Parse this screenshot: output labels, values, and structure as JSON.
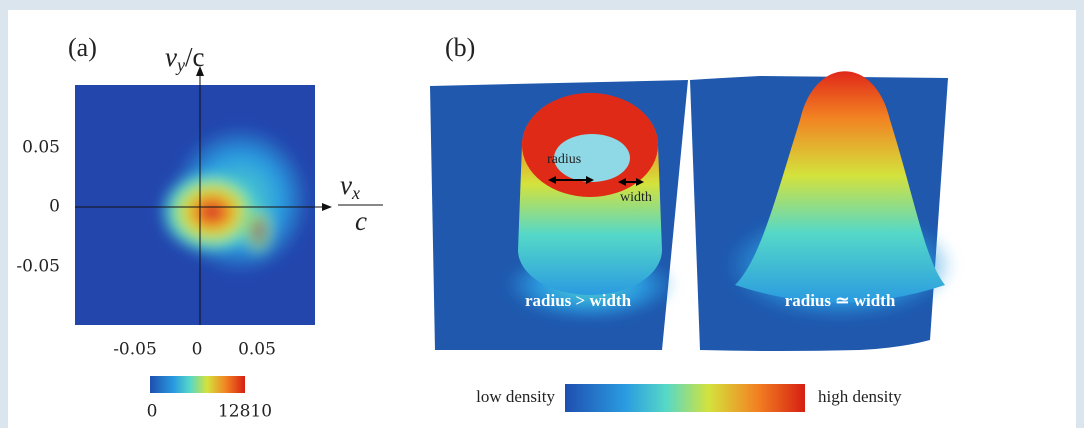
{
  "panel_a": {
    "label": "(a)",
    "y_axis_label": {
      "symbol": "v",
      "subscript": "y",
      "suffix": "/c"
    },
    "x_axis_label": {
      "symbol": "v",
      "subscript": "x",
      "denominator": "c"
    },
    "y_ticks": [
      "0.05",
      "0",
      "-0.05"
    ],
    "x_ticks": [
      "-0.05",
      "0",
      "0.05"
    ],
    "colorbar": {
      "min": "0",
      "max": "12810"
    }
  },
  "panel_b": {
    "label": "(b)",
    "left_surface": {
      "caption": "radius > width",
      "radius_annotation": "radius",
      "width_annotation": "width"
    },
    "right_surface": {
      "caption": "radius ≃ width"
    },
    "colorbar": {
      "low": "low density",
      "high": "high density"
    }
  }
}
